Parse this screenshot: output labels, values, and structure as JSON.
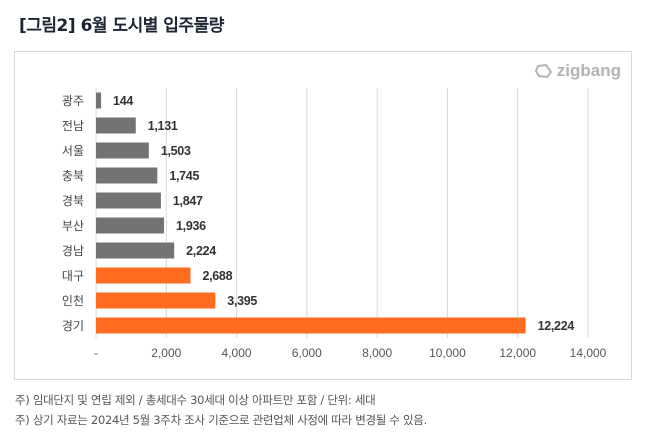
{
  "title": "[그림2] 6월 도시별 입주물량",
  "logo": {
    "text": "zigbang",
    "icon": "zigbang-logo-icon"
  },
  "colors": {
    "gray": "#737373",
    "orange": "#ff6b1f",
    "grid": "#d9d9d9",
    "label": "#333333",
    "tick": "#555555"
  },
  "chart_data": {
    "type": "bar",
    "orientation": "horizontal",
    "title": "6월 도시별 입주물량",
    "categories": [
      "광주",
      "전남",
      "서울",
      "충북",
      "경북",
      "부산",
      "경남",
      "대구",
      "인천",
      "경기"
    ],
    "values": [
      144,
      1131,
      1503,
      1745,
      1847,
      1936,
      2224,
      2688,
      3395,
      12224
    ],
    "value_labels": [
      "144",
      "1,131",
      "1,503",
      "1,745",
      "1,847",
      "1,936",
      "2,224",
      "2,688",
      "3,395",
      "12,224"
    ],
    "highlight": [
      false,
      false,
      false,
      false,
      false,
      false,
      false,
      true,
      true,
      true
    ],
    "xlim": [
      0,
      14000
    ],
    "xticks": [
      0,
      2000,
      4000,
      6000,
      8000,
      10000,
      12000,
      14000
    ],
    "xtick_labels": [
      "-",
      "2,000",
      "4,000",
      "6,000",
      "8,000",
      "10,000",
      "12,000",
      "14,000"
    ],
    "xlabel": "",
    "ylabel": "",
    "grid": "vertical",
    "legend": "none"
  },
  "notes": [
    "주) 임대단지 및 연립 제외 / 총세대수 30세대 이상 아파트만 포함 / 단위: 세대",
    "주) 상기 자료는 2024년 5월 3주차 조사 기준으로 관련업체 사정에 따라 변경될 수 있음."
  ]
}
